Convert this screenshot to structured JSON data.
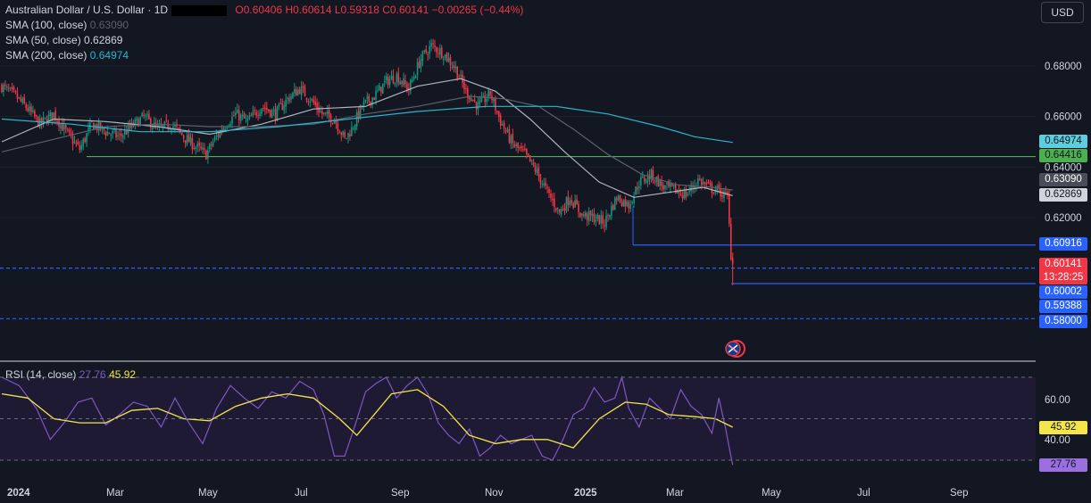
{
  "header": {
    "symbol": "Australian Dollar / U.S. Dollar · 1D",
    "open": "O0.60406",
    "high": "H0.60614",
    "low": "L0.59318",
    "close": "C0.60141",
    "change": "−0.00265 (−0.44%)",
    "sma50_label": "SMA (50, close)",
    "sma50_value": "0.62869",
    "sma100_label": "SMA (100, close)",
    "sma100_value": "0.63090",
    "sma200_label": "SMA (200, close)",
    "sma200_value": "0.64974",
    "currency": "USD"
  },
  "rsi_legend": {
    "label": "RSI (14, close)",
    "rsi_value": "27.76",
    "ma_value": "45.92"
  },
  "price_labels": {
    "sma200": "0.64974",
    "level_high": "0.64416",
    "sma100": "0.63090",
    "sma50": "0.62869",
    "level_mid": "0.60916",
    "last": "0.60141",
    "countdown": "13:28:25",
    "level_low": "0.60002",
    "low": "0.59388",
    "level_58": "0.58000",
    "rsi_ma": "45.92",
    "rsi": "27.76"
  },
  "colors": {
    "up": "#089981",
    "down": "#f23645",
    "sma50": "#b2b5be",
    "sma100": "#5d606b",
    "sma200": "#2bb5cf",
    "green_level": "#4caf50",
    "blue_level": "#2962ff",
    "rsi": "#7e57c2",
    "rsi_ma": "#f4e64a"
  },
  "chart_data": {
    "type": "line",
    "price_axis": {
      "ylim": [
        0.5755,
        0.6932
      ],
      "ticks": [
        "0.68000",
        "0.66000",
        "0.64000",
        "0.62000"
      ]
    },
    "rsi_axis": {
      "ylim": [
        20,
        80
      ],
      "ticks": [
        "60.00",
        "40.00"
      ],
      "bands": [
        70,
        50,
        30
      ]
    },
    "x_ticks": [
      "2024",
      "Mar",
      "May",
      "Jul",
      "Sep",
      "Nov",
      "2025",
      "Mar",
      "May",
      "Jul",
      "Sep"
    ],
    "levels": [
      {
        "name": "0.64416",
        "value": 0.64416,
        "style": "solid-green"
      },
      {
        "name": "0.60916",
        "value": 0.60916,
        "style": "solid-blue"
      },
      {
        "name": "0.60002",
        "value": 0.60002,
        "style": "dashed-blue"
      },
      {
        "name": "0.58000",
        "value": 0.58,
        "style": "dashed-blue"
      },
      {
        "name": "0.59388",
        "value": 0.59388,
        "style": "solid-blue"
      }
    ],
    "close_path": [
      [
        0,
        0.672
      ],
      [
        8,
        0.668
      ],
      [
        15,
        0.663
      ],
      [
        22,
        0.657
      ],
      [
        30,
        0.661
      ],
      [
        38,
        0.653
      ],
      [
        45,
        0.647
      ],
      [
        52,
        0.657
      ],
      [
        60,
        0.654
      ],
      [
        68,
        0.652
      ],
      [
        75,
        0.656
      ],
      [
        82,
        0.66
      ],
      [
        90,
        0.655
      ],
      [
        98,
        0.657
      ],
      [
        105,
        0.652
      ],
      [
        112,
        0.648
      ],
      [
        118,
        0.645
      ],
      [
        122,
        0.65
      ],
      [
        128,
        0.656
      ],
      [
        135,
        0.661
      ],
      [
        142,
        0.658
      ],
      [
        150,
        0.664
      ],
      [
        158,
        0.661
      ],
      [
        165,
        0.667
      ],
      [
        172,
        0.671
      ],
      [
        178,
        0.667
      ],
      [
        185,
        0.661
      ],
      [
        192,
        0.659
      ],
      [
        198,
        0.651
      ],
      [
        202,
        0.655
      ],
      [
        208,
        0.664
      ],
      [
        215,
        0.668
      ],
      [
        222,
        0.674
      ],
      [
        228,
        0.676
      ],
      [
        235,
        0.671
      ],
      [
        242,
        0.683
      ],
      [
        248,
        0.688
      ],
      [
        255,
        0.685
      ],
      [
        262,
        0.679
      ],
      [
        268,
        0.67
      ],
      [
        275,
        0.664
      ],
      [
        282,
        0.669
      ],
      [
        288,
        0.658
      ],
      [
        295,
        0.649
      ],
      [
        302,
        0.645
      ],
      [
        308,
        0.639
      ],
      [
        315,
        0.63
      ],
      [
        322,
        0.622
      ],
      [
        328,
        0.628
      ],
      [
        335,
        0.621
      ],
      [
        342,
        0.62
      ],
      [
        348,
        0.618
      ],
      [
        355,
        0.628
      ],
      [
        362,
        0.625
      ],
      [
        368,
        0.634
      ],
      [
        375,
        0.637
      ],
      [
        382,
        0.632
      ],
      [
        388,
        0.631
      ],
      [
        395,
        0.629
      ],
      [
        402,
        0.635
      ],
      [
        408,
        0.632
      ],
      [
        415,
        0.63
      ],
      [
        419,
        0.628
      ],
      [
        421,
        0.6055
      ],
      [
        422,
        0.60141
      ]
    ],
    "series": [
      {
        "name": "SMA (50, close)",
        "key": "sma50",
        "path": [
          [
            0,
            0.65
          ],
          [
            30,
            0.659
          ],
          [
            60,
            0.658
          ],
          [
            90,
            0.656
          ],
          [
            120,
            0.653
          ],
          [
            150,
            0.657
          ],
          [
            180,
            0.663
          ],
          [
            210,
            0.664
          ],
          [
            240,
            0.672
          ],
          [
            265,
            0.675
          ],
          [
            285,
            0.67
          ],
          [
            305,
            0.659
          ],
          [
            325,
            0.646
          ],
          [
            345,
            0.634
          ],
          [
            365,
            0.628
          ],
          [
            385,
            0.63
          ],
          [
            405,
            0.632
          ],
          [
            422,
            0.62869
          ]
        ]
      },
      {
        "name": "SMA (100, close)",
        "key": "sma100",
        "path": [
          [
            0,
            0.646
          ],
          [
            30,
            0.651
          ],
          [
            60,
            0.656
          ],
          [
            90,
            0.657
          ],
          [
            120,
            0.656
          ],
          [
            150,
            0.656
          ],
          [
            180,
            0.657
          ],
          [
            210,
            0.661
          ],
          [
            240,
            0.664
          ],
          [
            270,
            0.668
          ],
          [
            290,
            0.667
          ],
          [
            310,
            0.664
          ],
          [
            330,
            0.655
          ],
          [
            350,
            0.645
          ],
          [
            370,
            0.637
          ],
          [
            390,
            0.633
          ],
          [
            410,
            0.632
          ],
          [
            422,
            0.6309
          ]
        ]
      },
      {
        "name": "SMA (200, close)",
        "key": "sma200",
        "path": [
          [
            0,
            0.659
          ],
          [
            40,
            0.657
          ],
          [
            80,
            0.654
          ],
          [
            120,
            0.654
          ],
          [
            160,
            0.656
          ],
          [
            200,
            0.659
          ],
          [
            240,
            0.662
          ],
          [
            280,
            0.664
          ],
          [
            320,
            0.664
          ],
          [
            350,
            0.661
          ],
          [
            380,
            0.656
          ],
          [
            400,
            0.652
          ],
          [
            422,
            0.64974
          ]
        ]
      },
      {
        "name": "RSI (14, close)",
        "key": "rsi",
        "path": [
          [
            0,
            70
          ],
          [
            10,
            66
          ],
          [
            20,
            55
          ],
          [
            28,
            40
          ],
          [
            36,
            48
          ],
          [
            44,
            58
          ],
          [
            52,
            60
          ],
          [
            60,
            47
          ],
          [
            68,
            52
          ],
          [
            76,
            58
          ],
          [
            84,
            56
          ],
          [
            92,
            46
          ],
          [
            100,
            60
          ],
          [
            108,
            48
          ],
          [
            116,
            38
          ],
          [
            124,
            55
          ],
          [
            132,
            66
          ],
          [
            140,
            60
          ],
          [
            148,
            55
          ],
          [
            156,
            63
          ],
          [
            164,
            60
          ],
          [
            172,
            68
          ],
          [
            180,
            64
          ],
          [
            186,
            52
          ],
          [
            192,
            32
          ],
          [
            198,
            32
          ],
          [
            204,
            47
          ],
          [
            210,
            63
          ],
          [
            216,
            67
          ],
          [
            222,
            70
          ],
          [
            228,
            60
          ],
          [
            234,
            66
          ],
          [
            240,
            70
          ],
          [
            246,
            62
          ],
          [
            252,
            48
          ],
          [
            258,
            42
          ],
          [
            264,
            38
          ],
          [
            270,
            45
          ],
          [
            276,
            32
          ],
          [
            282,
            36
          ],
          [
            288,
            42
          ],
          [
            294,
            38
          ],
          [
            300,
            40
          ],
          [
            306,
            42
          ],
          [
            312,
            32
          ],
          [
            318,
            30
          ],
          [
            324,
            40
          ],
          [
            330,
            52
          ],
          [
            336,
            55
          ],
          [
            342,
            65
          ],
          [
            348,
            58
          ],
          [
            354,
            60
          ],
          [
            358,
            70
          ],
          [
            362,
            55
          ],
          [
            368,
            46
          ],
          [
            374,
            60
          ],
          [
            380,
            55
          ],
          [
            386,
            50
          ],
          [
            392,
            64
          ],
          [
            398,
            56
          ],
          [
            404,
            52
          ],
          [
            410,
            43
          ],
          [
            414,
            60
          ],
          [
            418,
            45
          ],
          [
            420,
            36
          ],
          [
            422,
            27.76
          ]
        ]
      },
      {
        "name": "RSI-based MA",
        "key": "rsi_ma",
        "path": [
          [
            0,
            62
          ],
          [
            15,
            60
          ],
          [
            30,
            50
          ],
          [
            45,
            48
          ],
          [
            60,
            48
          ],
          [
            75,
            54
          ],
          [
            90,
            55
          ],
          [
            105,
            50
          ],
          [
            120,
            49
          ],
          [
            135,
            56
          ],
          [
            150,
            60
          ],
          [
            165,
            62
          ],
          [
            180,
            60
          ],
          [
            195,
            50
          ],
          [
            205,
            42
          ],
          [
            215,
            52
          ],
          [
            225,
            62
          ],
          [
            240,
            64
          ],
          [
            255,
            56
          ],
          [
            270,
            42
          ],
          [
            285,
            38
          ],
          [
            300,
            40
          ],
          [
            315,
            40
          ],
          [
            330,
            36
          ],
          [
            345,
            50
          ],
          [
            360,
            58
          ],
          [
            372,
            57
          ],
          [
            385,
            52
          ],
          [
            400,
            51
          ],
          [
            412,
            50
          ],
          [
            422,
            45.92
          ]
        ]
      }
    ]
  }
}
